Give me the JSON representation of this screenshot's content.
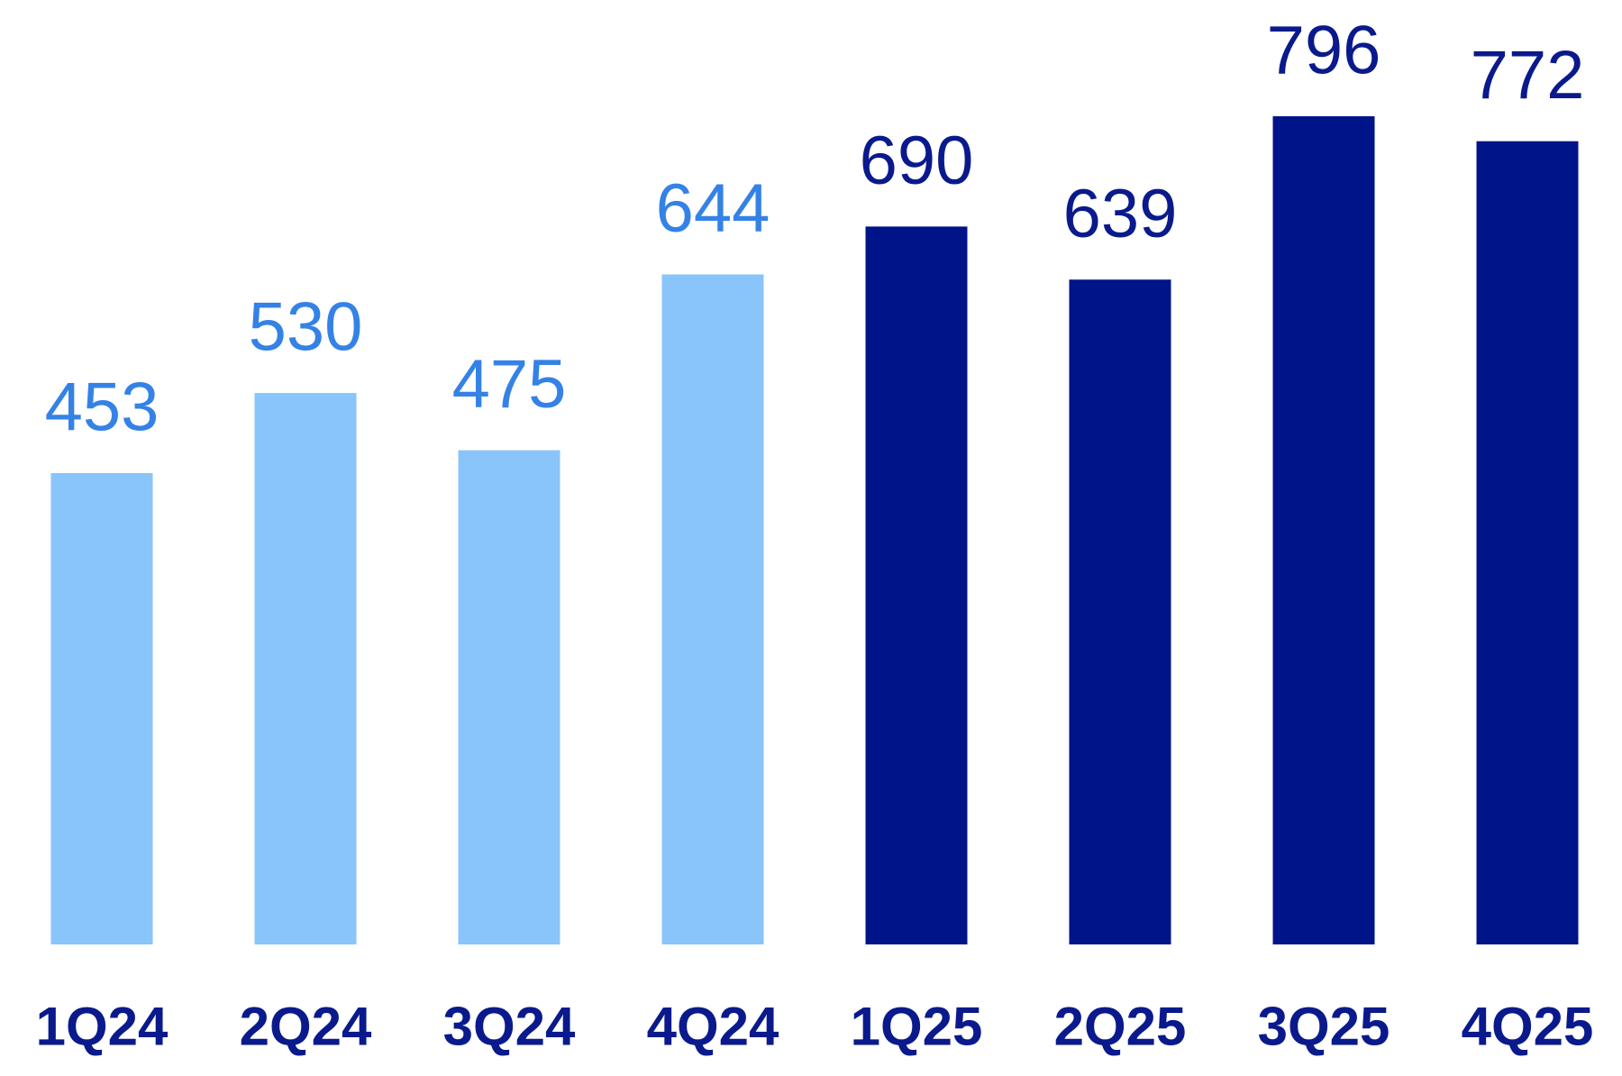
{
  "chart_data": {
    "type": "bar",
    "categories": [
      "1Q24",
      "2Q24",
      "3Q24",
      "4Q24",
      "1Q25",
      "2Q25",
      "3Q25",
      "4Q25"
    ],
    "values": [
      453,
      530,
      475,
      644,
      690,
      639,
      796,
      772
    ],
    "colors": [
      "#89c5fb",
      "#89c5fb",
      "#89c5fb",
      "#89c5fb",
      "#001489",
      "#001489",
      "#001489",
      "#001489"
    ],
    "label_colors": [
      "#3482e6",
      "#3482e6",
      "#3482e6",
      "#3482e6",
      "#0a1a8c",
      "#0a1a8c",
      "#0a1a8c",
      "#0a1a8c"
    ]
  }
}
